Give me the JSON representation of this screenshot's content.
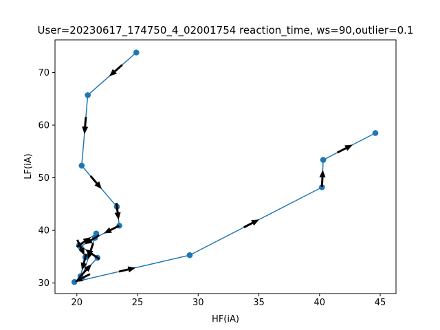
{
  "chart_data": {
    "type": "line",
    "title": "User=20230617_174750_4_02001754 reaction_time, ws=90,outlier=0.1",
    "xlabel": "HF(iA)",
    "ylabel": "LF(iA)",
    "xlim": [
      18.2,
      46.3
    ],
    "ylim": [
      28.0,
      76.2
    ],
    "xticks": [
      20,
      25,
      30,
      35,
      40,
      45
    ],
    "yticks": [
      30,
      40,
      50,
      60,
      70
    ],
    "grid": false,
    "legend": "none",
    "series": [
      {
        "color": "#1f77b4",
        "marker": "circle",
        "points": [
          {
            "x": 24.9,
            "y": 73.8
          },
          {
            "x": 20.9,
            "y": 65.7
          },
          {
            "x": 20.4,
            "y": 52.3
          },
          {
            "x": 23.3,
            "y": 44.5
          },
          {
            "x": 23.5,
            "y": 40.9
          },
          {
            "x": 21.5,
            "y": 38.6
          },
          {
            "x": 20.3,
            "y": 36.9
          },
          {
            "x": 20.7,
            "y": 34.9
          },
          {
            "x": 20.3,
            "y": 31.3
          },
          {
            "x": 21.7,
            "y": 34.8
          },
          {
            "x": 20.2,
            "y": 37.2
          },
          {
            "x": 21.6,
            "y": 39.4
          },
          {
            "x": 20.4,
            "y": 30.9
          },
          {
            "x": 19.8,
            "y": 30.2
          },
          {
            "x": 29.3,
            "y": 35.3
          },
          {
            "x": 40.2,
            "y": 48.2
          },
          {
            "x": 40.3,
            "y": 53.4
          },
          {
            "x": 44.6,
            "y": 58.5
          }
        ]
      }
    ],
    "arrows": {
      "color": "#000000",
      "placement": "segment-midpoint",
      "direction": "along-path"
    }
  }
}
